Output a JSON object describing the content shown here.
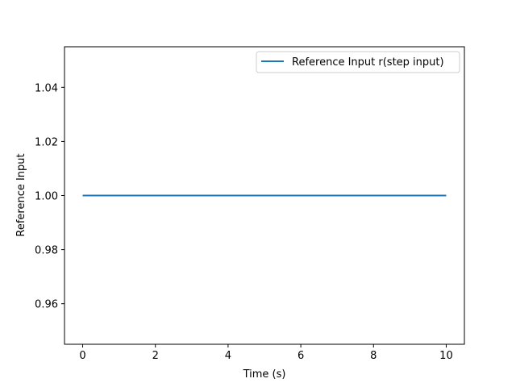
{
  "chart_data": {
    "type": "line",
    "title": "",
    "xlabel": "Time (s)",
    "ylabel": "Reference Input",
    "xlim": [
      -0.5,
      10.5
    ],
    "ylim": [
      0.945,
      1.055
    ],
    "xticks": [
      0,
      2,
      4,
      6,
      8,
      10
    ],
    "yticks": [
      0.96,
      0.98,
      1.0,
      1.02,
      1.04
    ],
    "xtick_labels": [
      "0",
      "2",
      "4",
      "6",
      "8",
      "10"
    ],
    "ytick_labels": [
      "0.96",
      "0.98",
      "1.00",
      "1.02",
      "1.04"
    ],
    "grid": false,
    "legend_position": "top-right",
    "series": [
      {
        "name": "Reference Input r(step input)",
        "color": "#1f77b4",
        "x": [
          0,
          10
        ],
        "y": [
          1.0,
          1.0
        ]
      }
    ]
  }
}
